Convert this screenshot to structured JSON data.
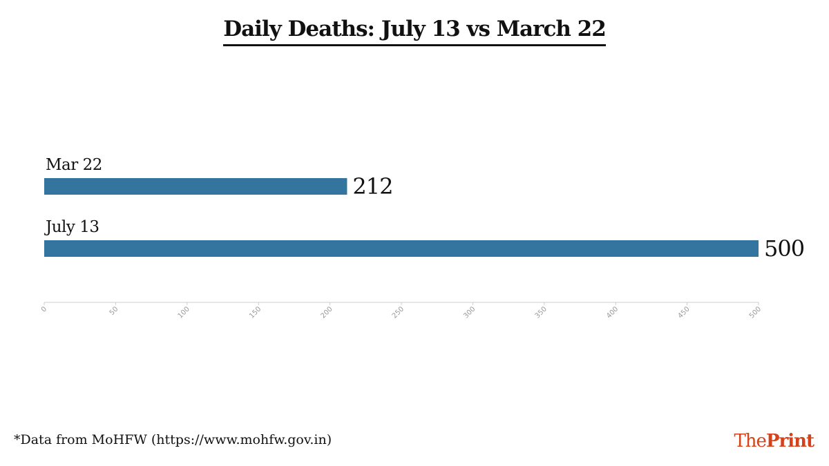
{
  "title": "Daily Deaths: July 13 vs March 22",
  "source_note": "*Data from MoHFW (https://www.mohfw.gov.in)",
  "brand": {
    "part1": "The",
    "part2": "Print"
  },
  "colors": {
    "bar": "#33759e",
    "axis": "#cccccc",
    "tick_label": "#999999",
    "brand": "#d2421b"
  },
  "chart_data": {
    "type": "bar",
    "orientation": "horizontal",
    "categories": [
      "Mar 22",
      "July 13"
    ],
    "values": [
      212,
      500
    ],
    "xlim": [
      0,
      500
    ],
    "xticks": [
      0,
      50,
      100,
      150,
      200,
      250,
      300,
      350,
      400,
      450,
      500
    ],
    "title": "Daily Deaths: July 13 vs March 22",
    "xlabel": "",
    "ylabel": "",
    "grid": false,
    "legend": "none"
  }
}
